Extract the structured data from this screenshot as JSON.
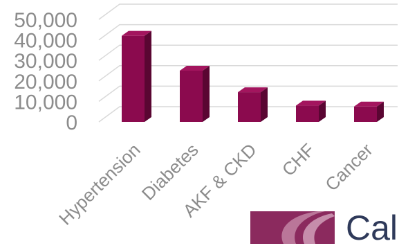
{
  "chart_data": {
    "type": "bar",
    "style": "3d",
    "categories": [
      "Hypertension",
      "Diabetes",
      "AKF & CKD",
      "CHF",
      "Cancer"
    ],
    "values": [
      42000,
      25000,
      14500,
      8000,
      7500
    ],
    "yticks": [
      "0",
      "10,000",
      "20,000",
      "30,000",
      "40,000",
      "50,000"
    ],
    "ylim": [
      0,
      50000
    ],
    "grid": true,
    "bar_color": "#8b0a4e",
    "bar_side_color": "#5a0632",
    "bar_top_color": "#a3155e"
  },
  "logo": {
    "text": "Cal",
    "accent_color": "#8b2a5e"
  }
}
